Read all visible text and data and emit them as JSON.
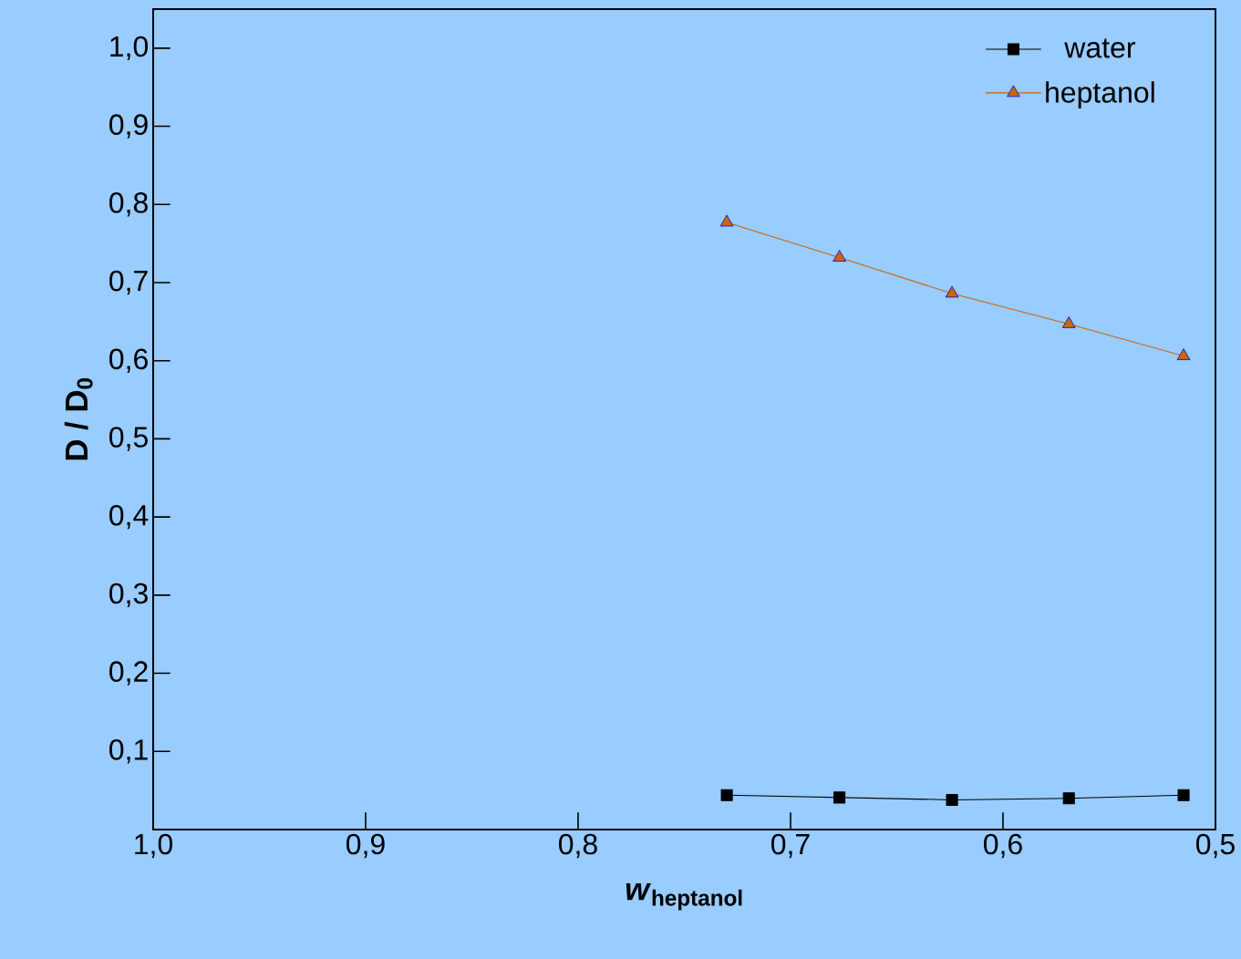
{
  "chart_data": {
    "type": "line",
    "xlabel": "*w*$_{heptanol}$",
    "ylabel": "D / D$_{0}$",
    "x": [
      0.73,
      0.677,
      0.624,
      0.569,
      0.515
    ],
    "xlim": [
      1.0,
      0.5
    ],
    "ylim": [
      0,
      1.05
    ],
    "xticks": [
      {
        "value": 1.0,
        "label": "1,0"
      },
      {
        "value": 0.9,
        "label": "0,9"
      },
      {
        "value": 0.8,
        "label": "0,8"
      },
      {
        "value": 0.7,
        "label": "0,7"
      },
      {
        "value": 0.6,
        "label": "0,6"
      },
      {
        "value": 0.5,
        "label": "0,5"
      }
    ],
    "yticks": [
      {
        "value": 0.1,
        "label": "0,1"
      },
      {
        "value": 0.2,
        "label": "0,2"
      },
      {
        "value": 0.3,
        "label": "0,3"
      },
      {
        "value": 0.4,
        "label": "0,4"
      },
      {
        "value": 0.5,
        "label": "0,5"
      },
      {
        "value": 0.6,
        "label": "0,6"
      },
      {
        "value": 0.7,
        "label": "0,7"
      },
      {
        "value": 0.8,
        "label": "0,8"
      },
      {
        "value": 0.9,
        "label": "0,9"
      },
      {
        "value": 1.0,
        "label": "1,0"
      }
    ],
    "legend": "top right",
    "series": [
      {
        "name": "water",
        "color": "#000000",
        "marker": "square",
        "values": [
          0.044,
          0.041,
          0.038,
          0.04,
          0.044
        ]
      },
      {
        "name": "heptanol",
        "color": "#cc6600",
        "marker": "triangle",
        "values": [
          0.777,
          0.732,
          0.686,
          0.647,
          0.606
        ]
      }
    ]
  }
}
